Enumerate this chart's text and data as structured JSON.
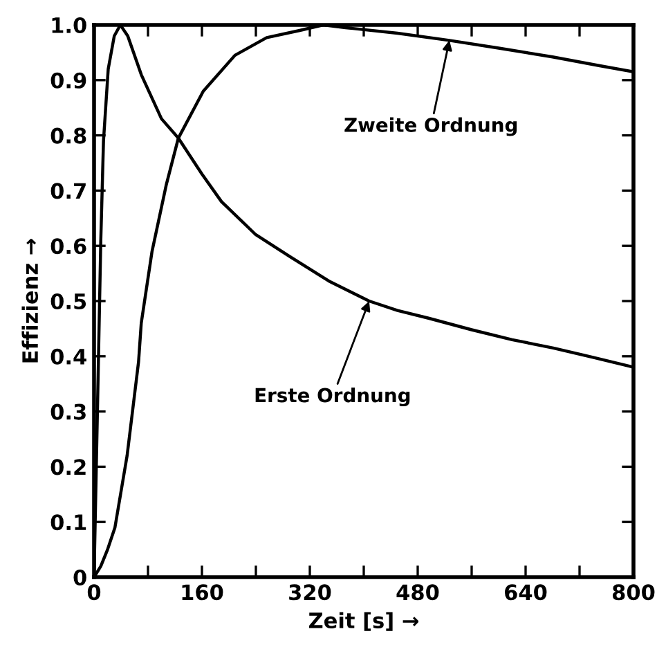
{
  "chart_data": {
    "type": "line",
    "xlabel": "Zeit [s] →",
    "ylabel": "Effizienz →",
    "series": [
      {
        "color": "#000000",
        "x": [
          0,
          5,
          10,
          14,
          21,
          30,
          39,
          50,
          70,
          100,
          125,
          160,
          189,
          240,
          291,
          350,
          408,
          450,
          496,
          560,
          620,
          681,
          740,
          794,
          800
        ],
        "values": [
          0,
          0.3,
          0.61,
          0.79,
          0.92,
          0.98,
          1.0,
          0.98,
          0.91,
          0.83,
          0.795,
          0.73,
          0.68,
          0.62,
          0.58,
          0.535,
          0.5,
          0.483,
          0.469,
          0.448,
          0.43,
          0.415,
          0.398,
          0.382,
          0.38
        ]
      },
      {
        "color": "#000000",
        "x": [
          0,
          10,
          20,
          31,
          49,
          66,
          70,
          86,
          107,
          125,
          162,
          209,
          256,
          305,
          340,
          373,
          450,
          527,
          600,
          680,
          750,
          800
        ],
        "values": [
          0,
          0.02,
          0.05,
          0.09,
          0.22,
          0.39,
          0.46,
          0.59,
          0.71,
          0.795,
          0.88,
          0.945,
          0.977,
          0.99,
          1.0,
          0.995,
          0.985,
          0.972,
          0.958,
          0.942,
          0.926,
          0.915
        ]
      }
    ],
    "xlim": [
      0,
      800
    ],
    "xticks": [
      0,
      {
        "value": 80,
        "label": null
      },
      160,
      {
        "value": 240,
        "label": null
      },
      320,
      {
        "value": 400,
        "label": null
      },
      480,
      {
        "value": 560,
        "label": null
      },
      640,
      {
        "value": 720,
        "label": null
      },
      800
    ],
    "ylim": [
      0,
      1.0
    ],
    "yticks": [
      {
        "value": 0,
        "label": "0"
      },
      0.1,
      0.2,
      0.3,
      0.4,
      0.5,
      0.6,
      0.7,
      0.8,
      0.9,
      {
        "value": 1.0,
        "label": "1.0"
      }
    ],
    "grid": false,
    "marker": "none",
    "line_style": "solid",
    "annotations": [
      {
        "text": "Zweite Ordnung",
        "x": 527,
        "y": 0.972
      },
      {
        "text": "Erste Ordnung",
        "x": 408,
        "y": 0.5
      }
    ]
  }
}
